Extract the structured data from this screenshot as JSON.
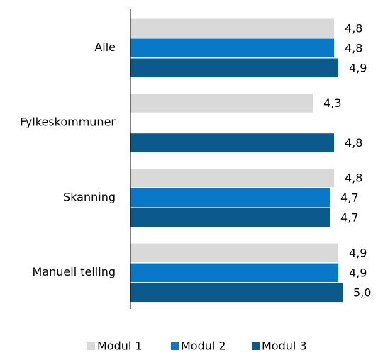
{
  "chart_data": {
    "type": "hbar",
    "categories": [
      "Alle",
      "Fylkeskommuner",
      "Skanning",
      "Manuell telling"
    ],
    "series": [
      {
        "name": "Modul 1",
        "color": "#d9d9d9",
        "values": [
          4.8,
          4.3,
          4.8,
          4.9
        ],
        "value_labels": [
          "4,8",
          "4,3",
          "4,8",
          "4,9"
        ]
      },
      {
        "name": "Modul 2",
        "color": "#0a78c8",
        "values": [
          4.8,
          null,
          4.7,
          4.9
        ],
        "value_labels": [
          "4,8",
          null,
          "4,7",
          "4,9"
        ]
      },
      {
        "name": "Modul 3",
        "color": "#0b5a8e",
        "values": [
          4.9,
          4.8,
          4.7,
          5.0
        ],
        "value_labels": [
          "4,9",
          "4,8",
          "4,7",
          "5,0"
        ]
      }
    ],
    "xlim": [
      0,
      5
    ]
  }
}
